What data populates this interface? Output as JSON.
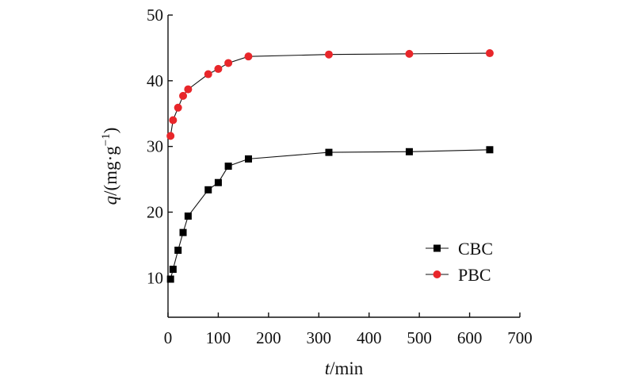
{
  "chart_data": {
    "type": "line",
    "title": "",
    "xlabel": {
      "italic": "t",
      "rest": "/min"
    },
    "ylabel": {
      "italic": "q",
      "rest": "/(mg·g",
      "sup": "−1",
      "close": ")"
    },
    "xlim": [
      0,
      700
    ],
    "ylim": [
      4,
      50
    ],
    "xticks": [
      0,
      100,
      200,
      300,
      400,
      500,
      600,
      700
    ],
    "yticks": [
      10,
      20,
      30,
      40,
      50
    ],
    "grid": false,
    "legend": "center-right",
    "series": [
      {
        "name": "CBC",
        "color": "#000000",
        "marker": "square",
        "x": [
          5,
          10,
          20,
          30,
          40,
          80,
          100,
          120,
          160,
          320,
          480,
          640
        ],
        "y": [
          9.8,
          11.3,
          14.2,
          16.9,
          19.4,
          23.4,
          24.5,
          27.0,
          28.1,
          29.1,
          29.2,
          29.5
        ]
      },
      {
        "name": "PBC",
        "color": "#e8262a",
        "marker": "circle",
        "x": [
          5,
          10,
          20,
          30,
          40,
          80,
          100,
          120,
          160,
          320,
          480,
          640
        ],
        "y": [
          31.6,
          34.0,
          35.9,
          37.7,
          38.7,
          41.0,
          41.8,
          42.7,
          43.7,
          44.0,
          44.1,
          44.2
        ]
      }
    ]
  }
}
